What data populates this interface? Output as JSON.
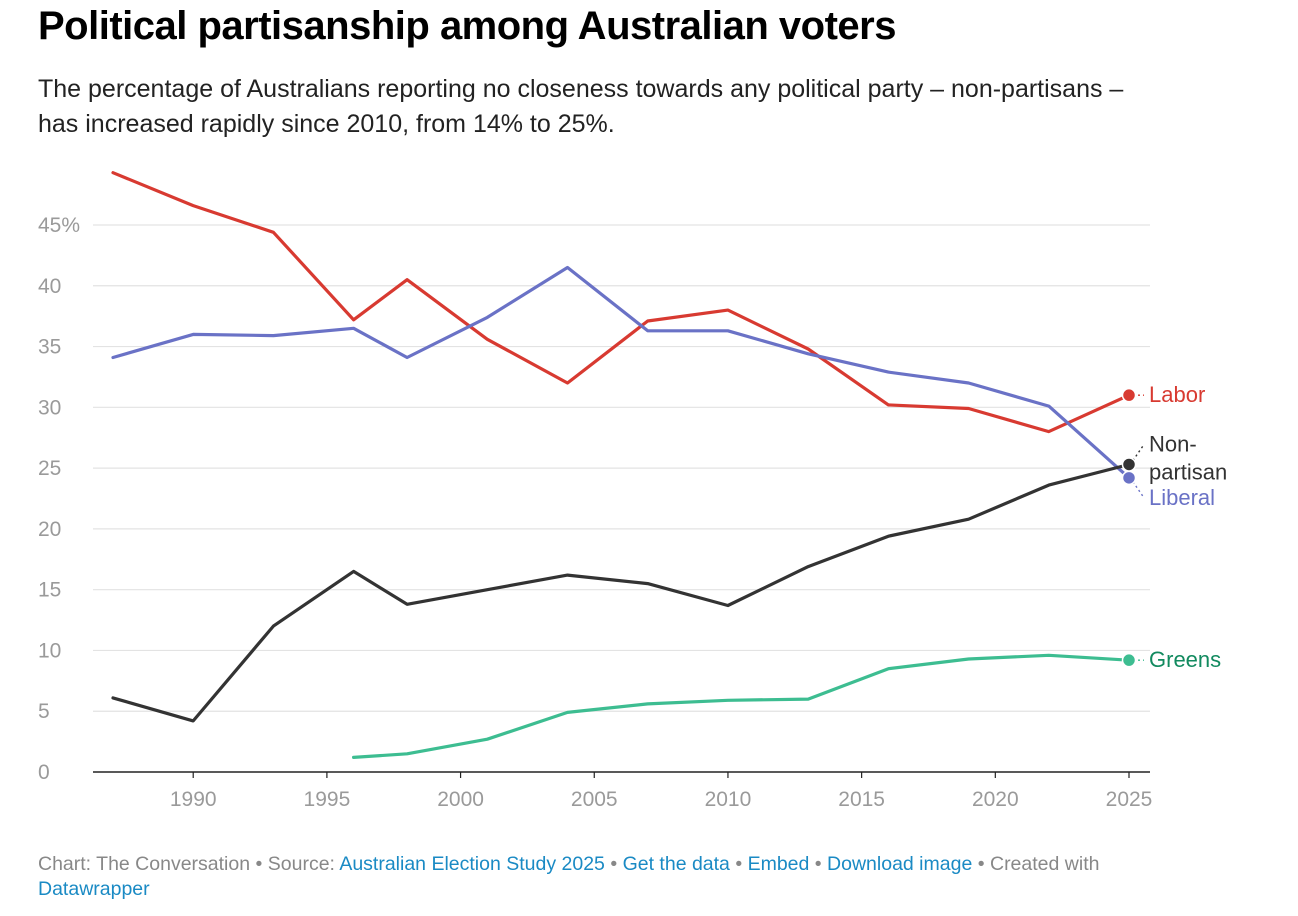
{
  "title": "Political partisanship among Australian voters",
  "subtitle": "The percentage of Australians reporting no closeness towards any political party – non-partisans – has increased rapidly since 2010, from 14% to 25%.",
  "footer": {
    "chart_credit": "Chart: The Conversation",
    "source_prefix": "Source:",
    "source_link": "Australian Election Study 2025",
    "get_data": "Get the data",
    "embed": "Embed",
    "download": "Download image",
    "created_with": "Created with",
    "datawrapper": "Datawrapper",
    "separator": "•"
  },
  "chart_data": {
    "type": "line",
    "title": "Political partisanship among Australian voters",
    "xlabel": "",
    "ylabel": "",
    "xlim": [
      1987,
      2025
    ],
    "ylim": [
      0,
      45
    ],
    "x_ticks": [
      1990,
      1995,
      2000,
      2005,
      2010,
      2015,
      2020,
      2025
    ],
    "y_ticks": [
      0,
      5,
      10,
      15,
      20,
      25,
      30,
      35,
      40,
      45
    ],
    "y_tick_labels": [
      "0",
      "5",
      "10",
      "15",
      "20",
      "25",
      "30",
      "35",
      "40",
      "45%"
    ],
    "grid": true,
    "legend": "direct labels at line ends",
    "series": [
      {
        "name": "Labor",
        "label_lines": [
          "Labor"
        ],
        "color": "#d83a31",
        "x": [
          1987,
          1990,
          1993,
          1996,
          1998,
          2001,
          2004,
          2007,
          2010,
          2013,
          2016,
          2019,
          2022,
          2025
        ],
        "values": [
          49.3,
          46.6,
          44.4,
          37.2,
          40.5,
          35.6,
          32.0,
          37.1,
          38.0,
          34.8,
          30.2,
          29.9,
          28.0,
          31.0
        ]
      },
      {
        "name": "Liberal",
        "label_lines": [
          "Liberal"
        ],
        "color": "#6a72c6",
        "x": [
          1987,
          1990,
          1993,
          1996,
          1998,
          2001,
          2004,
          2007,
          2010,
          2013,
          2016,
          2019,
          2022,
          2025
        ],
        "values": [
          34.1,
          36.0,
          35.9,
          36.5,
          34.1,
          37.4,
          41.5,
          36.3,
          36.3,
          34.4,
          32.9,
          32.0,
          30.1,
          24.2
        ]
      },
      {
        "name": "Non-partisan",
        "label_lines": [
          "Non-",
          "partisan"
        ],
        "color": "#333333",
        "x": [
          1987,
          1990,
          1993,
          1996,
          1998,
          2001,
          2004,
          2007,
          2010,
          2013,
          2016,
          2019,
          2022,
          2025
        ],
        "values": [
          6.1,
          4.2,
          12.0,
          16.5,
          13.8,
          15.0,
          16.2,
          15.5,
          13.7,
          16.9,
          19.4,
          20.8,
          23.6,
          25.3
        ]
      },
      {
        "name": "Greens",
        "label_lines": [
          "Greens"
        ],
        "color": "#3dbd91",
        "label_color": "#128a5f",
        "x": [
          1996,
          1998,
          2001,
          2004,
          2007,
          2010,
          2013,
          2016,
          2019,
          2022,
          2025
        ],
        "values": [
          1.2,
          1.5,
          2.7,
          4.9,
          5.6,
          5.9,
          6.0,
          8.5,
          9.3,
          9.6,
          9.2
        ]
      }
    ]
  }
}
